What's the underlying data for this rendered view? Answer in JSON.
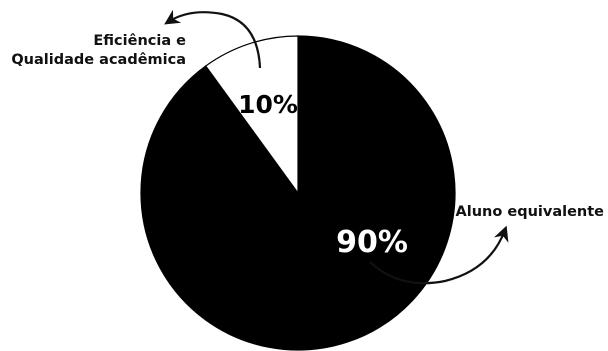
{
  "chart_data": {
    "type": "pie",
    "slices": [
      {
        "label_lines": [
          "Aluno equivalente"
        ],
        "value": 90,
        "value_label": "90%",
        "color": "#000000",
        "text_color": "#ffffff"
      },
      {
        "label_lines": [
          "Eficiência e",
          "Qualidade acadêmica"
        ],
        "value": 10,
        "value_label": "10%",
        "color": "#ffffff",
        "text_color": "#000000"
      }
    ],
    "start": "12 o'clock",
    "direction": "clockwise",
    "legend": "none",
    "annotations": "curved arrows from slices to outside labels"
  }
}
